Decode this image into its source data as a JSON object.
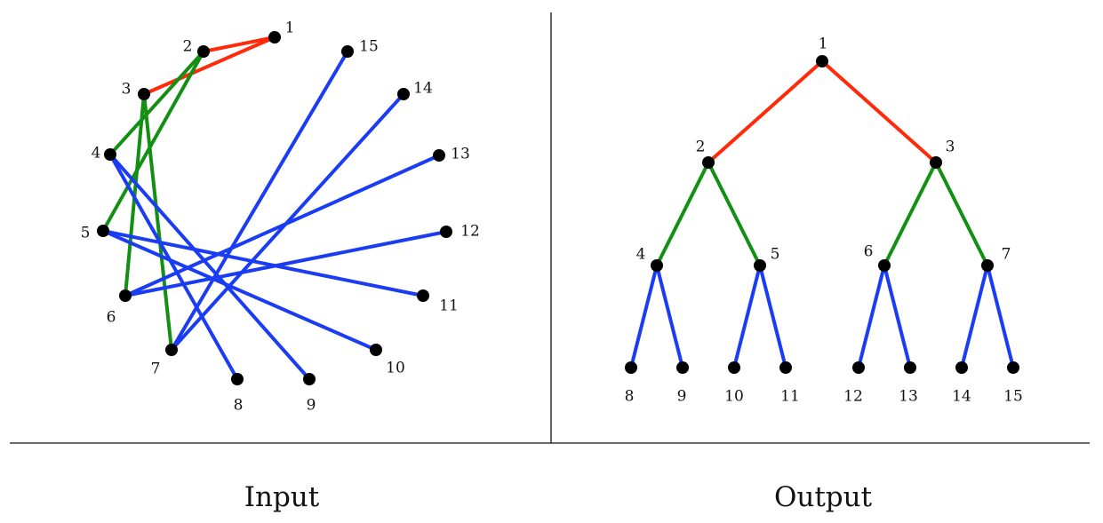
{
  "colors": {
    "level1": "#ff2a0a",
    "level2": "#138f13",
    "level3": "#1a3cf2",
    "node": "#000000",
    "divider": "#111111"
  },
  "captions": {
    "input": "Input",
    "output": "Output"
  },
  "labels": [
    "1",
    "2",
    "3",
    "4",
    "5",
    "6",
    "7",
    "8",
    "9",
    "10",
    "11",
    "12",
    "13",
    "14",
    "15"
  ],
  "edges": [
    {
      "from": 1,
      "to": 2,
      "level": "level1"
    },
    {
      "from": 1,
      "to": 3,
      "level": "level1"
    },
    {
      "from": 2,
      "to": 4,
      "level": "level2"
    },
    {
      "from": 2,
      "to": 5,
      "level": "level2"
    },
    {
      "from": 3,
      "to": 6,
      "level": "level2"
    },
    {
      "from": 3,
      "to": 7,
      "level": "level2"
    },
    {
      "from": 4,
      "to": 8,
      "level": "level3"
    },
    {
      "from": 4,
      "to": 9,
      "level": "level3"
    },
    {
      "from": 5,
      "to": 10,
      "level": "level3"
    },
    {
      "from": 5,
      "to": 11,
      "level": "level3"
    },
    {
      "from": 6,
      "to": 12,
      "level": "level3"
    },
    {
      "from": 6,
      "to": 13,
      "level": "level3"
    },
    {
      "from": 7,
      "to": 14,
      "level": "level3"
    },
    {
      "from": 7,
      "to": 15,
      "level": "level3"
    }
  ]
}
